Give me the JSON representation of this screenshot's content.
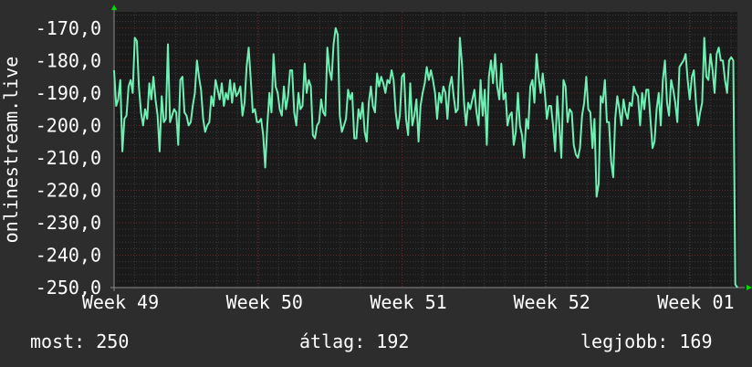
{
  "chart_data": {
    "type": "line",
    "ylabel": "onlinestream.live",
    "yticks": [
      -170,
      -180,
      -190,
      -200,
      -210,
      -220,
      -230,
      -240,
      -250
    ],
    "ytick_labels": [
      "-170,0",
      "-180,0",
      "-190,0",
      "-200,0",
      "-210,0",
      "-220,0",
      "-230,0",
      "-240,0",
      "-250,0"
    ],
    "ylim": [
      -250,
      -165
    ],
    "xlim": [
      0,
      100
    ],
    "xticks": [
      {
        "x": 0,
        "label": "Week 49"
      },
      {
        "x": 23.1,
        "label": "Week 50"
      },
      {
        "x": 46.2,
        "label": "Week 51"
      },
      {
        "x": 69.2,
        "label": "Week 52"
      },
      {
        "x": 92.3,
        "label": "Week 01"
      }
    ],
    "grid": true,
    "colors": {
      "background": "#2d2d2d",
      "plot": "#1a1a1a",
      "line": "#6ef0b4",
      "grid_minor": "#3a3a3a",
      "grid_major": "#6a2a2a",
      "axis_arrow": "#00dd00"
    },
    "series": [
      {
        "values": [
          -183,
          -194,
          -192,
          -186,
          -208,
          -198,
          -197,
          -188,
          -186,
          -190,
          -173,
          -174,
          -188,
          -196,
          -200,
          -195,
          -198,
          -187,
          -192,
          -185,
          -192,
          -197,
          -208,
          -191,
          -199,
          -198,
          -175,
          -199,
          -197,
          -195,
          -196,
          -206,
          -186,
          -185,
          -196,
          -197,
          -200,
          -199,
          -194,
          -190,
          -180,
          -185,
          -189,
          -198,
          -202,
          -200,
          -199,
          -191,
          -194,
          -186,
          -189,
          -192,
          -187,
          -194,
          -190,
          -192,
          -186,
          -193,
          -187,
          -191,
          -190,
          -188,
          -197,
          -193,
          -182,
          -176,
          -186,
          -196,
          -195,
          -199,
          -199,
          -198,
          -203,
          -213,
          -200,
          -190,
          -196,
          -178,
          -188,
          -190,
          -195,
          -197,
          -188,
          -195,
          -191,
          -183,
          -183,
          -196,
          -200,
          -190,
          -195,
          -194,
          -181,
          -190,
          -186,
          -188,
          -203,
          -204,
          -200,
          -199,
          -192,
          -196,
          -197,
          -176,
          -183,
          -186,
          -175,
          -170,
          -172,
          -197,
          -202,
          -200,
          -198,
          -189,
          -192,
          -190,
          -204,
          -204,
          -195,
          -198,
          -193,
          -202,
          -205,
          -193,
          -188,
          -194,
          -196,
          -184,
          -188,
          -185,
          -187,
          -190,
          -186,
          -187,
          -183,
          -186,
          -196,
          -201,
          -197,
          -185,
          -184,
          -198,
          -203,
          -187,
          -200,
          -197,
          -192,
          -205,
          -194,
          -190,
          -187,
          -182,
          -186,
          -183,
          -186,
          -190,
          -198,
          -190,
          -193,
          -188,
          -190,
          -198,
          -188,
          -185,
          -191,
          -196,
          -195,
          -173,
          -181,
          -193,
          -200,
          -193,
          -195,
          -192,
          -189,
          -196,
          -200,
          -186,
          -197,
          -189,
          -206,
          -185,
          -180,
          -187,
          -178,
          -188,
          -192,
          -181,
          -192,
          -190,
          -200,
          -197,
          -196,
          -206,
          -202,
          -190,
          -200,
          -203,
          -210,
          -198,
          -201,
          -188,
          -186,
          -193,
          -178,
          -185,
          -190,
          -184,
          -190,
          -198,
          -194,
          -194,
          -200,
          -208,
          -191,
          -200,
          -210,
          -186,
          -188,
          -199,
          -195,
          -196,
          -206,
          -209,
          -210,
          -207,
          -197,
          -193,
          -185,
          -195,
          -196,
          -207,
          -198,
          -222,
          -218,
          -191,
          -193,
          -186,
          -199,
          -199,
          -211,
          -216,
          -198,
          -191,
          -195,
          -200,
          -192,
          -196,
          -198,
          -193,
          -194,
          -188,
          -190,
          -191,
          -200,
          -190,
          -195,
          -189,
          -189,
          -198,
          -207,
          -205,
          -195,
          -190,
          -200,
          -186,
          -180,
          -193,
          -197,
          -186,
          -189,
          -193,
          -199,
          -182,
          -181,
          -180,
          -178,
          -186,
          -192,
          -185,
          -183,
          -193,
          -200,
          -196,
          -193,
          -173,
          -185,
          -186,
          -178,
          -183,
          -190,
          -178,
          -176,
          -180,
          -180,
          -186,
          -190,
          -180,
          -179,
          -180,
          -249,
          -250
        ]
      }
    ]
  },
  "stats": {
    "now": "most: 250",
    "avg": "átlag: 192",
    "best": "legjobb: 169"
  }
}
